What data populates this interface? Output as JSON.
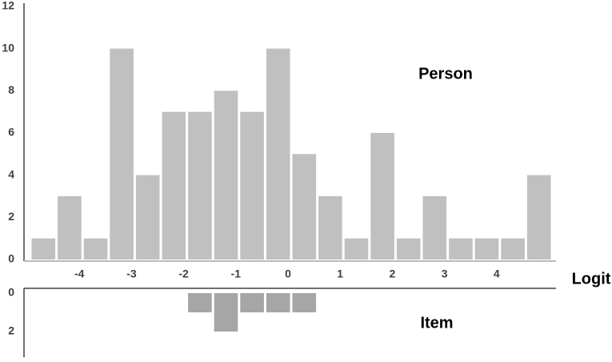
{
  "chart_data": [
    {
      "type": "histogram",
      "label": "Person",
      "xlabel": "Logit",
      "bins": [
        -5,
        -4.5,
        -4,
        -3.5,
        -3,
        -2.5,
        -2,
        -1.5,
        -1,
        -0.5,
        0,
        0.5,
        1,
        1.5,
        2,
        2.5,
        3,
        3.5,
        4,
        4.5,
        5
      ],
      "values": [
        1,
        3,
        1,
        10,
        4,
        7,
        7,
        8,
        7,
        10,
        5,
        3,
        1,
        6,
        1,
        3,
        1,
        1,
        1,
        4
      ],
      "xlim": [
        -5,
        5
      ],
      "xticks": [
        -4,
        -3,
        -2,
        -1,
        0,
        1,
        2,
        3,
        4
      ],
      "ylim": [
        0,
        12
      ],
      "yticks": [
        0,
        2,
        4,
        6,
        8,
        10,
        12
      ],
      "color": "#c0c0c0"
    },
    {
      "type": "histogram",
      "label": "Item",
      "bins": [
        -2,
        -1.5,
        -1,
        -0.5,
        0,
        0.5
      ],
      "values": [
        1,
        2,
        1,
        1,
        1
      ],
      "xlim": [
        -5,
        5
      ],
      "ylim": [
        0,
        3.25
      ],
      "yticks": [
        0,
        2
      ],
      "color": "#a6a6a6"
    }
  ]
}
